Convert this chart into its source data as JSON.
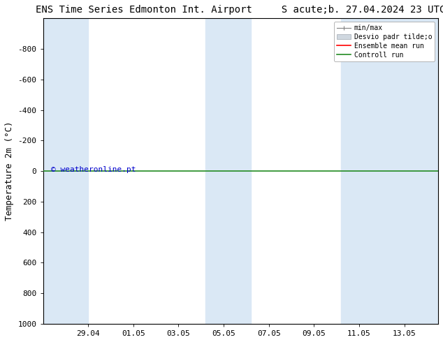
{
  "title": "ENS Time Series Edmonton Int. Airport     S acute;b. 27.04.2024 23 UTC",
  "ylabel": "Temperature 2m (°C)",
  "watermark": "© weatheronline.pt",
  "ylim_top": -1000,
  "ylim_bottom": 1000,
  "yticks": [
    -800,
    -600,
    -400,
    -200,
    0,
    200,
    400,
    600,
    800,
    1000
  ],
  "background_color": "#ffffff",
  "plot_bg_color": "#ffffff",
  "band_color": "#dae8f5",
  "ensemble_mean_color": "#ff0000",
  "control_run_color": "#228B22",
  "minmax_color": "#808080",
  "stddev_color": "#d0d8e0",
  "stddev_edge_color": "#a0a8b0",
  "title_fontsize": 10,
  "tick_fontsize": 8,
  "ylabel_fontsize": 9,
  "legend_fontsize": 7,
  "x_labels": [
    "29.04",
    "01.05",
    "03.05",
    "05.05",
    "07.05",
    "09.05",
    "11.05",
    "13.05"
  ],
  "x_tick_days": [
    2,
    4,
    6,
    8,
    10,
    12,
    14,
    16
  ],
  "total_days": 17.5,
  "band_ranges": [
    [
      0.0,
      2.0
    ],
    [
      7.2,
      9.2
    ],
    [
      13.2,
      17.5
    ]
  ],
  "legend_labels": [
    "min/max",
    "Desvio padr tilde;o",
    "Ensemble mean run",
    "Controll run"
  ],
  "watermark_color": "#0000cc"
}
